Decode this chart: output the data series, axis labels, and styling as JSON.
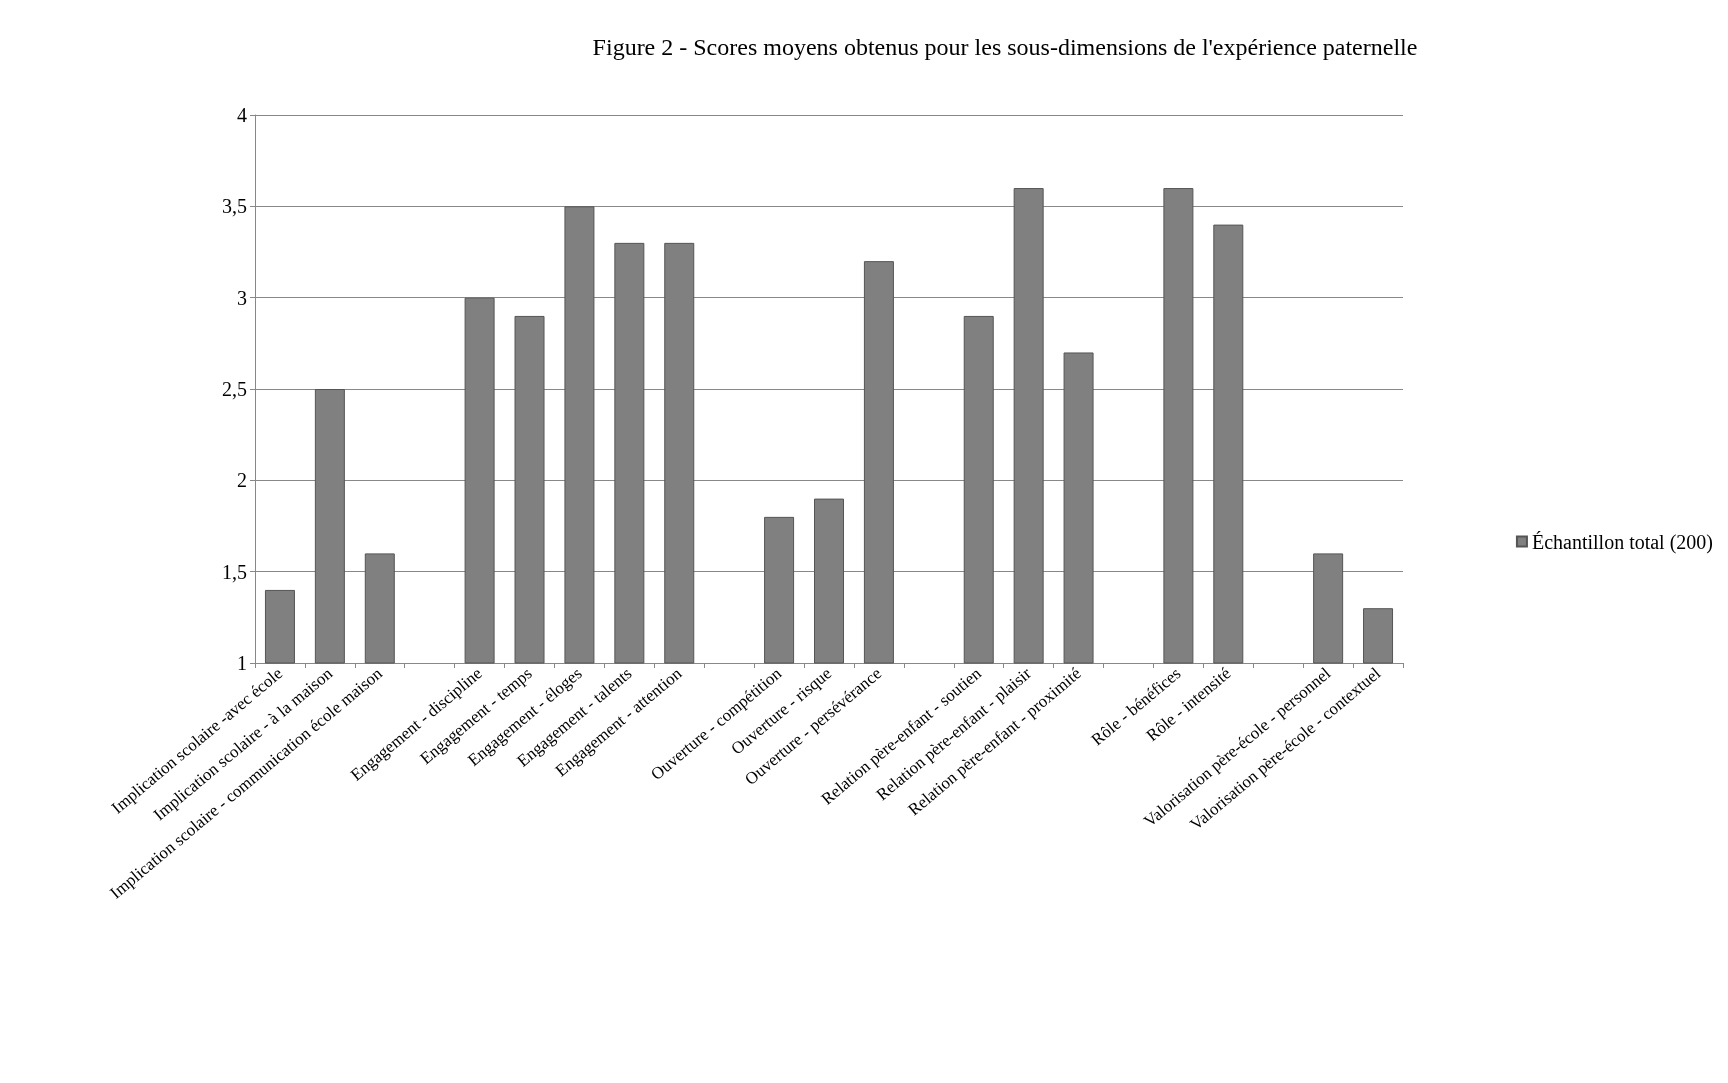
{
  "chart_data": {
    "type": "bar",
    "title": "Figure 2 - Scores moyens obtenus pour les sous-dimensions de l'expérience paternelle",
    "categories": [
      "Implication scolaire -avec école",
      "Implication scolaire - à la maison",
      "Implication scolaire - communication école maison",
      null,
      "Engagement - discipline",
      "Engagement - temps",
      "Engagement - éloges",
      "Engagement - talents",
      "Engagement - attention",
      null,
      "Ouverture - compétition",
      "Ouverture - risque",
      "Ouverture - persévérance",
      null,
      "Relation père-enfant - soutien",
      "Relation père-enfant - plaisir",
      "Relation père-enfant - proximité",
      null,
      "Rôle - bénéfices",
      "Rôle - intensité",
      null,
      "Valorisation père-école - personnel",
      "Valorisation père-école - contextuel"
    ],
    "series": [
      {
        "name": "Échantillon total (200)",
        "color": "#808080",
        "values": [
          1.4,
          2.5,
          1.6,
          null,
          3.0,
          2.9,
          3.5,
          3.3,
          3.3,
          null,
          1.8,
          1.9,
          3.2,
          null,
          2.9,
          3.6,
          2.7,
          null,
          3.6,
          3.4,
          null,
          1.6,
          1.3
        ]
      }
    ],
    "ylim": [
      1,
      4
    ],
    "yticks": [
      1,
      {
        "value": 1.5,
        "label": "1,5"
      },
      2,
      {
        "value": 2.5,
        "label": "2,5"
      },
      3,
      {
        "value": 3.5,
        "label": "3,5"
      },
      4
    ],
    "grid": "y",
    "legend": "right"
  }
}
